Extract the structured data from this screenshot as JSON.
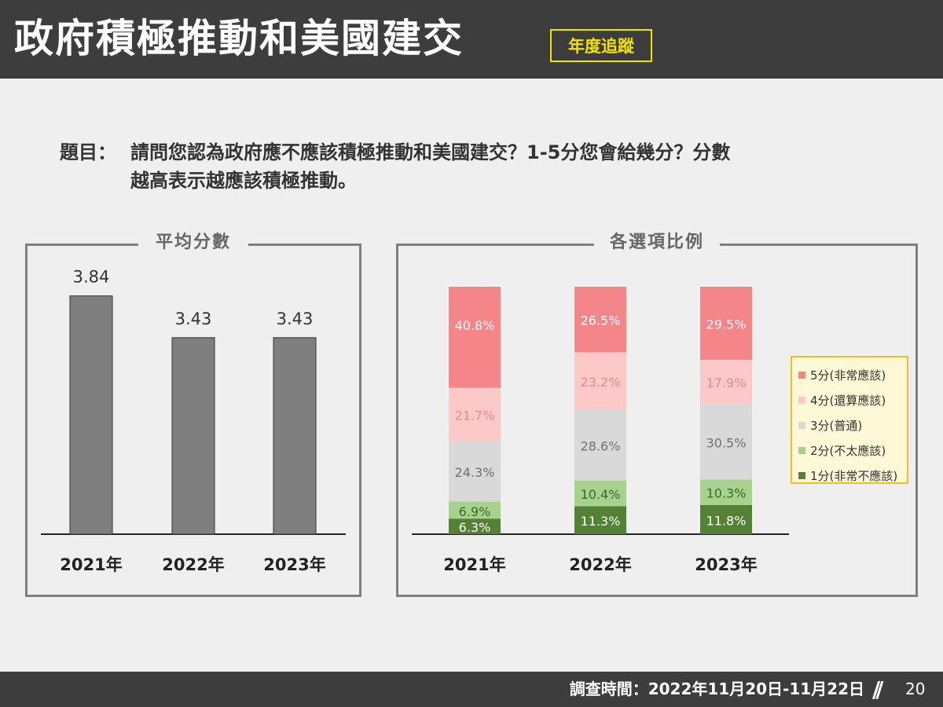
{
  "header": {
    "title": "政府積極推動和美國建交",
    "badge": "年度追蹤"
  },
  "question": {
    "label": "題目：",
    "line1": "請問您認為政府應不應該積極推動和美國建交？1-5分您會給幾分？分數",
    "line2": "越高表示越應該積極推動。"
  },
  "footer": {
    "survey_time": "調查時間：2022年11月20日-11月22日",
    "page": "20"
  },
  "colors": {
    "avg_bar": "#7f7f7f",
    "score5": "#f4868a",
    "score4": "#fcc8c8",
    "score3": "#d9d9d9",
    "score2": "#a9d18e",
    "score1": "#548235"
  },
  "chart_data": [
    {
      "type": "bar",
      "title": "平均分數",
      "categories": [
        "2021年",
        "2022年",
        "2023年"
      ],
      "values": [
        3.84,
        3.43,
        3.43
      ],
      "value_labels": [
        "3.84",
        "3.43",
        "3.43"
      ],
      "ylim": [
        1.5,
        4.2
      ],
      "grid": false
    },
    {
      "type": "bar",
      "stacked": true,
      "title": "各選項比例",
      "categories": [
        "2021年",
        "2022年",
        "2023年"
      ],
      "series": [
        {
          "name": "1分(非常不應該)",
          "values": [
            6.3,
            11.3,
            11.8
          ],
          "labels": [
            "6.3%",
            "11.3%",
            "11.8%"
          ],
          "color": "#548235",
          "label_color": "#ffffff"
        },
        {
          "name": "2分(不太應該)",
          "values": [
            6.9,
            10.4,
            10.3
          ],
          "labels": [
            "6.9%",
            "10.4%",
            "10.3%"
          ],
          "color": "#a9d18e",
          "label_color": "#3a6a28"
        },
        {
          "name": "3分(普通)",
          "values": [
            24.3,
            28.6,
            30.5
          ],
          "labels": [
            "24.3%",
            "28.6%",
            "30.5%"
          ],
          "color": "#d9d9d9",
          "label_color": "#707070"
        },
        {
          "name": "4分(還算應該)",
          "values": [
            21.7,
            23.2,
            17.9
          ],
          "labels": [
            "21.7%",
            "23.2%",
            "17.9%"
          ],
          "color": "#fcc8c8",
          "label_color": "#e88b8b"
        },
        {
          "name": "5分(非常應該)",
          "values": [
            40.8,
            26.5,
            29.5
          ],
          "labels": [
            "40.8%",
            "26.5%",
            "29.5%"
          ],
          "color": "#f4868a",
          "label_color": "#ffffff"
        }
      ],
      "legend_order": [
        "5分(非常應該)",
        "4分(還算應該)",
        "3分(普通)",
        "2分(不太應該)",
        "1分(非常不應該)"
      ],
      "legend": "right",
      "grid": false
    }
  ]
}
